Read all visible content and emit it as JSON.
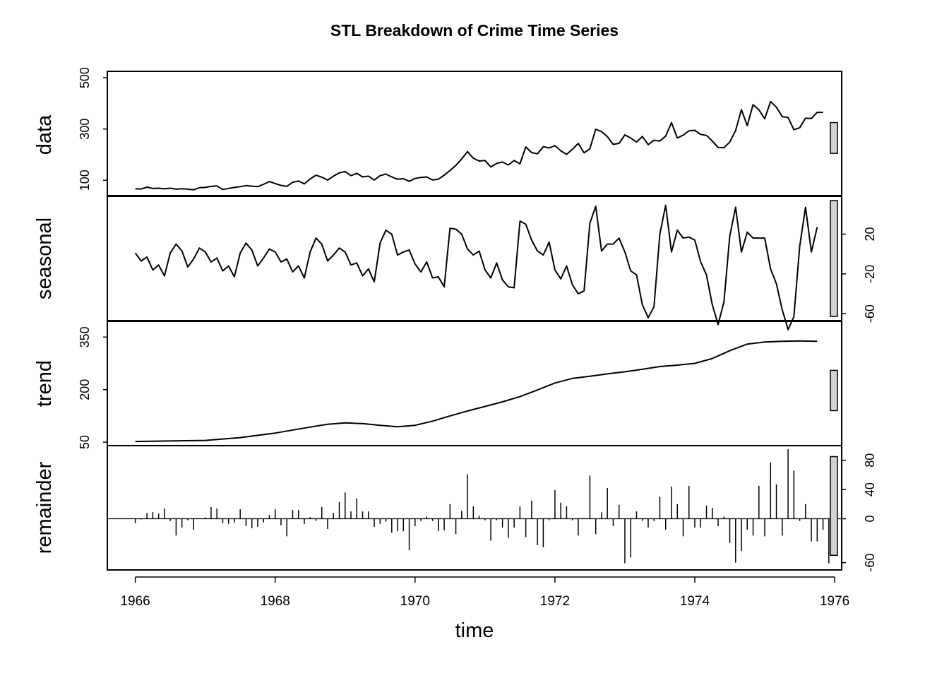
{
  "chart_data": {
    "type": "line",
    "title": "STL Breakdown of Crime Time Series",
    "xlabel": "time",
    "x_ticks": [
      "1966",
      "1968",
      "1970",
      "1972",
      "1974",
      "1976"
    ],
    "xlim": [
      1965.6,
      1976.1
    ],
    "start": 1966.0,
    "frequency": 12,
    "panels": [
      {
        "name": "data",
        "ylim": [
          40,
          525
        ],
        "ticks": [
          "100",
          "300",
          "500"
        ],
        "tick_side": "left",
        "values": [
          67,
          66,
          73,
          68,
          69,
          67,
          69,
          65,
          67,
          65,
          63,
          71,
          72,
          76,
          78,
          64,
          68,
          72,
          75,
          79,
          77,
          75,
          84,
          95,
          87,
          80,
          76,
          92,
          97,
          86,
          105,
          120,
          112,
          101,
          116,
          129,
          134,
          118,
          127,
          113,
          116,
          101,
          118,
          124,
          113,
          104,
          106,
          96,
          107,
          111,
          113,
          101,
          104,
          120,
          138,
          158,
          183,
          212,
          186,
          175,
          177,
          152,
          166,
          171,
          160,
          177,
          164,
          230,
          208,
          203,
          231,
          226,
          235,
          215,
          201,
          221,
          244,
          207,
          223,
          299,
          290,
          270,
          240,
          244,
          277,
          265,
          249,
          271,
          239,
          256,
          253,
          272,
          325,
          265,
          276,
          293,
          295,
          279,
          275,
          253,
          228,
          227,
          249,
          294,
          375,
          313,
          395,
          375,
          340,
          407,
          385,
          348,
          345,
          297,
          305,
          342,
          341,
          365,
          365
        ],
        "bar_range": [
          205,
          325
        ]
      },
      {
        "name": "seasonal",
        "ylim": [
          -67,
          58
        ],
        "ticks": [
          "-60",
          "-20",
          "20"
        ],
        "tick_side": "right",
        "values": [
          1,
          -7,
          -3,
          -16,
          -11,
          -22,
          1,
          10,
          3,
          -13,
          -5,
          6,
          2,
          -8,
          -4,
          -17,
          -12,
          -23,
          1,
          11,
          4,
          -12,
          -4,
          5,
          2,
          -8,
          -5,
          -18,
          -12,
          -24,
          2,
          16,
          10,
          -7,
          -1,
          6,
          2,
          -11,
          -9,
          -22,
          -15,
          -28,
          11,
          24,
          20,
          -1,
          2,
          4,
          -10,
          -18,
          -8,
          -24,
          -23,
          -33,
          26,
          25,
          20,
          5,
          -1,
          3,
          -16,
          -24,
          -9,
          -26,
          -33,
          -34,
          33,
          30,
          14,
          3,
          -1,
          12,
          -16,
          -25,
          -12,
          -31,
          -40,
          -37,
          31,
          48,
          3,
          10,
          10,
          16,
          2,
          -17,
          -21,
          -51,
          -64,
          -53,
          20,
          49,
          2,
          24,
          16,
          17,
          14,
          -8,
          -21,
          -51,
          -71,
          -48,
          18,
          47,
          2,
          22,
          16,
          16,
          16,
          -15,
          -30,
          -56,
          -76,
          -63,
          8,
          47,
          2,
          27
        ]
      },
      {
        "name": "trend",
        "ylim": [
          40,
          395
        ],
        "ticks": [
          "50",
          "200",
          "350"
        ],
        "tick_side": "left",
        "x": [
          1966.0,
          1967.0,
          1967.5,
          1968.0,
          1968.5,
          1968.75,
          1969.0,
          1969.25,
          1969.5,
          1969.75,
          1970.0,
          1970.25,
          1970.5,
          1970.75,
          1971.0,
          1971.25,
          1971.5,
          1971.75,
          1972.0,
          1972.25,
          1972.5,
          1972.75,
          1973.0,
          1973.25,
          1973.5,
          1973.75,
          1974.0,
          1974.25,
          1974.5,
          1974.75,
          1975.0,
          1975.25,
          1975.5,
          1975.75
        ],
        "values": [
          52,
          55,
          63,
          76,
          93,
          101,
          105,
          103,
          98,
          94,
          98,
          110,
          125,
          139,
          152,
          165,
          180,
          199,
          219,
          232,
          238,
          245,
          251,
          258,
          266,
          270,
          275,
          289,
          311,
          330,
          336,
          338,
          339,
          338
        ],
        "bar_range": [
          140,
          255
        ]
      },
      {
        "name": "remainder",
        "ylim": [
          -70,
          100
        ],
        "ticks": [
          "-60",
          "0",
          "40",
          "80"
        ],
        "tick_side": "right",
        "values": [
          -6,
          -1,
          8,
          9,
          7,
          14,
          -3,
          -23,
          -12,
          -2,
          -15,
          0,
          2,
          16,
          14,
          -6,
          -7,
          -5,
          13,
          -10,
          -13,
          -11,
          -5,
          5,
          13,
          -9,
          -24,
          12,
          12,
          -7,
          2,
          -3,
          16,
          -14,
          8,
          23,
          36,
          10,
          28,
          10,
          10,
          -11,
          -7,
          -4,
          -19,
          -17,
          -17,
          -43,
          -10,
          -3,
          3,
          -3,
          -17,
          -16,
          20,
          -21,
          11,
          61,
          17,
          4,
          -2,
          -30,
          -2,
          -12,
          -26,
          -12,
          17,
          -25,
          25,
          -36,
          -39,
          -2,
          39,
          22,
          17,
          -2,
          -23,
          1,
          59,
          -21,
          9,
          42,
          -10,
          19,
          -61,
          -53,
          10,
          -3,
          -12,
          -3,
          30,
          -15,
          44,
          20,
          -24,
          45,
          -12,
          -12,
          18,
          15,
          -10,
          3,
          -33,
          -60,
          -44,
          -15,
          -23,
          45,
          -24,
          77,
          47,
          -23,
          95,
          66,
          -3,
          20,
          -31,
          -31,
          -15,
          -61,
          28
        ]
      }
    ],
    "remainder_bar_range": [
      -50,
      85
    ]
  }
}
